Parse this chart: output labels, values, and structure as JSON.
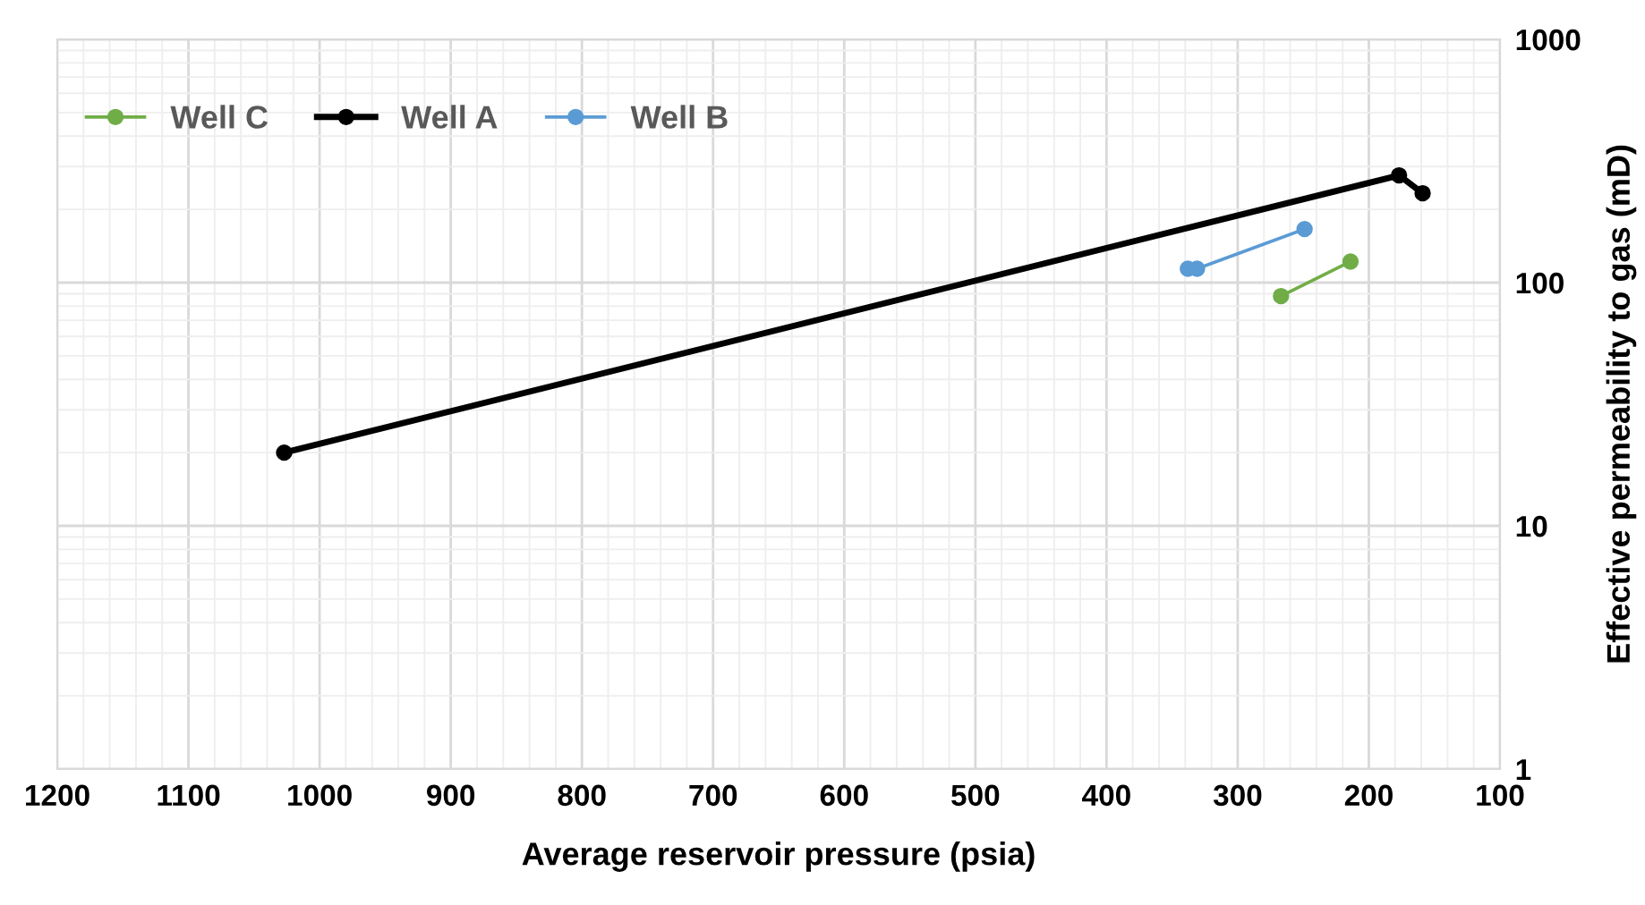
{
  "chart_data": {
    "type": "line",
    "xlabel": "Average reservoir pressure (psia)",
    "ylabel": "Effective permeability to gas (mD)",
    "log": "y",
    "grid": true,
    "legend": "top left",
    "marker": "circle",
    "line_style": "solid",
    "xlim": [
      1200,
      100
    ],
    "xticks": [
      1200,
      1100,
      1000,
      900,
      800,
      700,
      600,
      500,
      400,
      300,
      200,
      100
    ],
    "ylim": [
      1,
      1000
    ],
    "yticks": [
      1,
      10,
      100,
      1000
    ],
    "series": [
      {
        "name": "Well C",
        "color": "#70ad47",
        "x": [
          267,
          214
        ],
        "values": [
          88,
          122
        ]
      },
      {
        "name": "Well A",
        "color": "#000000",
        "x": [
          1027,
          177,
          159
        ],
        "values": [
          20,
          276,
          233
        ]
      },
      {
        "name": "Well B",
        "color": "#5b9bd5",
        "x": [
          338,
          331,
          249
        ],
        "values": [
          114,
          114,
          166
        ]
      }
    ]
  }
}
